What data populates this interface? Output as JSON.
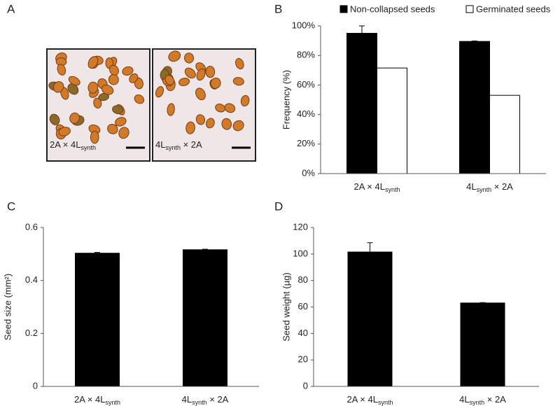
{
  "panel_labels": [
    "A",
    "B",
    "C",
    "D"
  ],
  "subscript": "synth",
  "photos": [
    {
      "label": "2A × 4Lsynth"
    },
    {
      "label": "4Lsynth × 2A"
    }
  ],
  "chart_data": [
    {
      "type": "bar",
      "y_label": "Frequency (%)",
      "categories": [
        "2A × 4Lsynth",
        "4Lsynth × 2A"
      ],
      "series": [
        {
          "name": "Non-collapsed seeds",
          "color": "#000000",
          "values": [
            95,
            89.5
          ],
          "errors": [
            5,
            0.3
          ]
        },
        {
          "name": "Germinated seeds",
          "color": "#ffffff",
          "values": [
            71.5,
            53
          ]
        }
      ],
      "ylim": [
        0,
        100
      ],
      "yticks": [
        {
          "value": 0,
          "label": "0%"
        },
        {
          "value": 20,
          "label": "20%"
        },
        {
          "value": 40,
          "label": "40%"
        },
        {
          "value": 60,
          "label": "60%"
        },
        {
          "value": 80,
          "label": "80%"
        },
        {
          "value": 100,
          "label": "100%"
        }
      ],
      "legend": "top"
    },
    {
      "type": "bar",
      "y_label": "Seed size (mm²)",
      "categories": [
        "2A × 4Lsynth",
        "4Lsynth × 2A"
      ],
      "series": [
        {
          "color": "#000000",
          "values": [
            0.503,
            0.516
          ],
          "errors": [
            0.003,
            0.002
          ]
        }
      ],
      "ylim": [
        0,
        0.6
      ],
      "yticks": [
        0,
        0.2,
        0.4,
        0.6
      ]
    },
    {
      "type": "bar",
      "y_label": "Seed weight (µg)",
      "categories": [
        "2A × 4Lsynth",
        "4Lsynth × 2A"
      ],
      "series": [
        {
          "color": "#000000",
          "values": [
            101.5,
            63
          ],
          "errors": [
            7,
            0.3
          ]
        }
      ],
      "ylim": [
        0,
        120
      ],
      "yticks": [
        0,
        20,
        40,
        60,
        80,
        100,
        120
      ]
    }
  ]
}
